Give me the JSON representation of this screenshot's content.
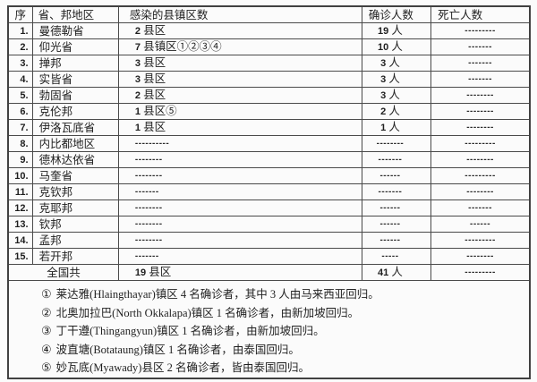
{
  "table": {
    "headers": [
      "序",
      "省、邦地区",
      "感染的县镇区数",
      "确诊人数",
      "死亡人数"
    ],
    "rows": [
      {
        "no": "1.",
        "region": "曼德勒省",
        "inf_n": "2",
        "inf_t": " 县区",
        "conf_n": "19",
        "conf_t": " 人",
        "deaths": "---------"
      },
      {
        "no": "2.",
        "region": "仰光省",
        "inf_n": "7",
        "inf_t": " 县镇区①②③④",
        "conf_n": "10",
        "conf_t": " 人",
        "deaths": "-------"
      },
      {
        "no": "3.",
        "region": "掸邦",
        "inf_n": "3",
        "inf_t": " 县区",
        "conf_n": "3",
        "conf_t": " 人",
        "deaths": "-------"
      },
      {
        "no": "4.",
        "region": "实皆省",
        "inf_n": "3",
        "inf_t": " 县区",
        "conf_n": "3",
        "conf_t": " 人",
        "deaths": "-------"
      },
      {
        "no": "5.",
        "region": "勃固省",
        "inf_n": "2",
        "inf_t": " 县区",
        "conf_n": "3",
        "conf_t": " 人",
        "deaths": "--------"
      },
      {
        "no": "6.",
        "region": "克伦邦",
        "inf_n": "1",
        "inf_t": " 县区⑤",
        "conf_n": "2",
        "conf_t": " 人",
        "deaths": "--------"
      },
      {
        "no": "7.",
        "region": "伊洛瓦底省",
        "inf_n": "1",
        "inf_t": " 县区",
        "conf_n": "1",
        "conf_t": " 人",
        "deaths": "--------"
      },
      {
        "no": "8.",
        "region": "内比都地区",
        "inf_n": "",
        "inf_t": "----------",
        "conf_n": "",
        "conf_t": "--------",
        "deaths": "---------"
      },
      {
        "no": "9.",
        "region": "德林达依省",
        "inf_n": "",
        "inf_t": "--------",
        "conf_n": "",
        "conf_t": "-------",
        "deaths": "--------"
      },
      {
        "no": "10.",
        "region": "马奎省",
        "inf_n": "",
        "inf_t": "--------",
        "conf_n": "",
        "conf_t": "------",
        "deaths": "---------"
      },
      {
        "no": "11.",
        "region": "克钦邦",
        "inf_n": "",
        "inf_t": "-------",
        "conf_n": "",
        "conf_t": "-------",
        "deaths": "--------"
      },
      {
        "no": "12.",
        "region": "克耶邦",
        "inf_n": "",
        "inf_t": "--------",
        "conf_n": "",
        "conf_t": "------",
        "deaths": "-------"
      },
      {
        "no": "13.",
        "region": "钦邦",
        "inf_n": "",
        "inf_t": "--------",
        "conf_n": "",
        "conf_t": "------",
        "deaths": "------"
      },
      {
        "no": "14.",
        "region": "孟邦",
        "inf_n": "",
        "inf_t": "--------",
        "conf_n": "",
        "conf_t": "------",
        "deaths": "---------"
      },
      {
        "no": "15.",
        "region": "若开邦",
        "inf_n": "",
        "inf_t": "-------",
        "conf_n": "",
        "conf_t": "-----",
        "deaths": "--------"
      }
    ],
    "total": {
      "label": "全国共",
      "inf_n": "19",
      "inf_t": " 县区",
      "conf_n": "41",
      "conf_t": " 人",
      "deaths": "---------"
    }
  },
  "notes": [
    {
      "marker": "①",
      "text": "莱达雅(Hlaingthayar)镇区 4 名确诊者，其中 3 人由马来西亚回归。"
    },
    {
      "marker": "②",
      "text": "北奥加拉巴(North Okkalapa)镇区 1 名确诊者，由新加坡回归。"
    },
    {
      "marker": "③",
      "text": "丁干遵(Thingangyun)镇区 1 名确诊者，由新加坡回归。"
    },
    {
      "marker": "④",
      "text": "波直塘(Botataung)镇区 1 名确诊者，由泰国回归。"
    },
    {
      "marker": "⑤",
      "text": "妙瓦底(Myawady)县区 2 名确诊者，皆由泰国回归。"
    }
  ]
}
